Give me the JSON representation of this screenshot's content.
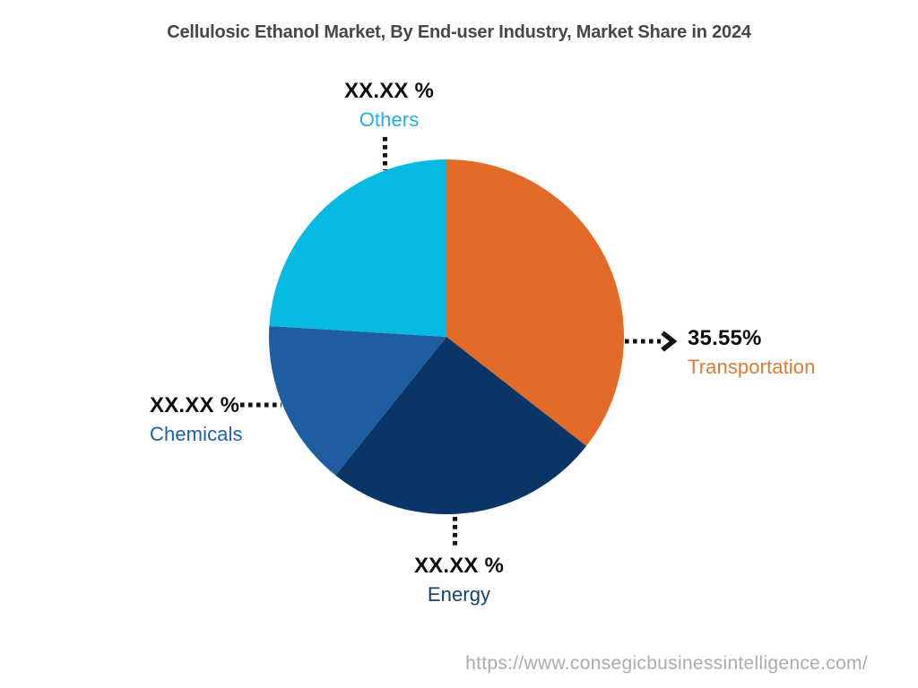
{
  "chart_data": {
    "type": "pie",
    "title": "Cellulosic Ethanol Market, By End-user Industry, Market Share in 2024",
    "direction": "clockwise",
    "start_angle_deg": 0,
    "legend_position": "none",
    "series": [
      {
        "name": "Transportation",
        "display_value": "35.55%",
        "value_pct": 35.55,
        "color": "#E36B28",
        "label_color": "#DE7A31"
      },
      {
        "name": "Energy",
        "display_value": "XX.XX %",
        "value_pct": 25.2,
        "color": "#0B3566",
        "label_color": "#17416F"
      },
      {
        "name": "Chemicals",
        "display_value": "XX.XX %",
        "value_pct": 15.22,
        "color": "#1E5EA0",
        "label_color": "#1F5FA5"
      },
      {
        "name": "Others",
        "display_value": "XX.XX %",
        "value_pct": 24.03,
        "color": "#05BBE4",
        "label_color": "#29ACE3"
      }
    ]
  },
  "footer": {
    "source_url": "https://www.consegicbusinessintelligence.com/"
  }
}
